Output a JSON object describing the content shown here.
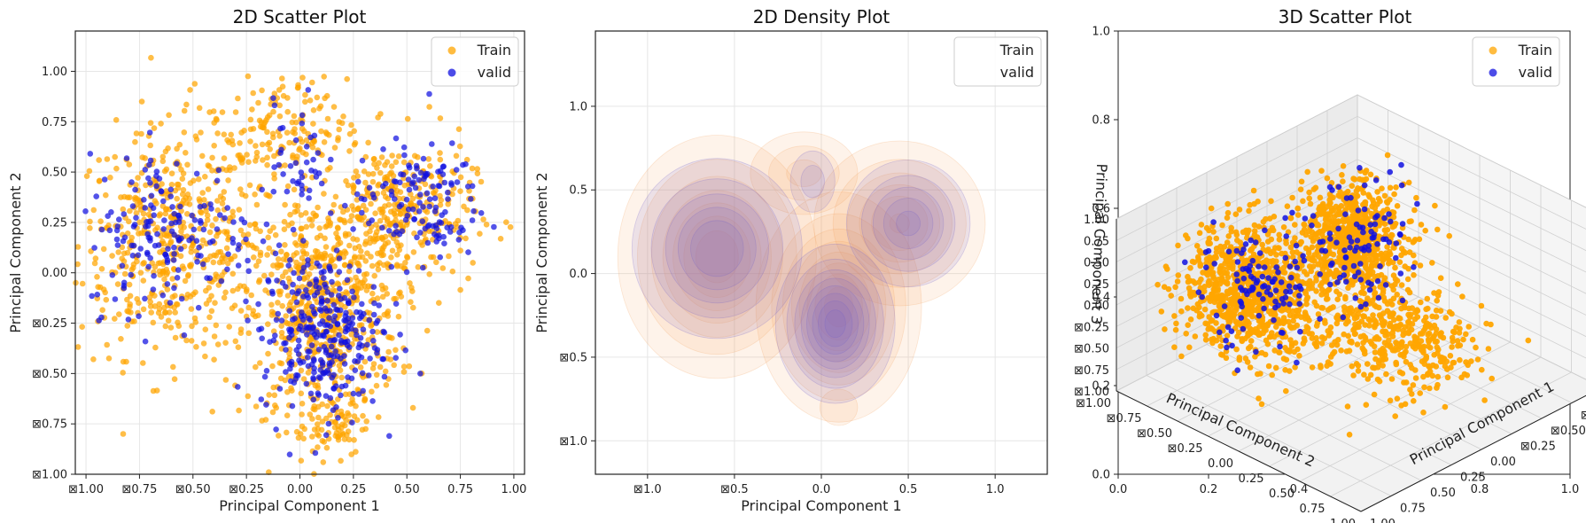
{
  "chart_data": [
    {
      "type": "scatter",
      "title": "2D Scatter Plot",
      "xlabel": "Principal Component 1",
      "ylabel": "Principal Component 2",
      "xlim": [
        -1.05,
        1.05
      ],
      "ylim": [
        -1.0,
        1.2
      ],
      "xticks": [
        "⊠1.00",
        "⊠0.75",
        "⊠0.50",
        "⊠0.25",
        "0.00",
        "0.25",
        "0.50",
        "0.75",
        "1.00"
      ],
      "xtick_values": [
        -1.0,
        -0.75,
        -0.5,
        -0.25,
        0,
        0.25,
        0.5,
        0.75,
        1.0
      ],
      "yticks": [
        "⊠1.00",
        "⊠0.75",
        "⊠0.50",
        "⊠0.25",
        "0.00",
        "0.25",
        "0.50",
        "0.75",
        "1.00"
      ],
      "ytick_values": [
        -1.0,
        -0.75,
        -0.5,
        -0.25,
        0,
        0.25,
        0.5,
        0.75,
        1.0
      ],
      "grid": true,
      "legend_position": "top-right",
      "series": [
        {
          "name": "Train",
          "color": "#FFA500",
          "clusters": [
            {
              "cx": -0.6,
              "cy": 0.15,
              "sx": 0.22,
              "sy": 0.28,
              "n": 520
            },
            {
              "cx": 0.1,
              "cy": -0.2,
              "sx": 0.18,
              "sy": 0.28,
              "n": 650
            },
            {
              "cx": 0.45,
              "cy": 0.3,
              "sx": 0.18,
              "sy": 0.18,
              "n": 340
            },
            {
              "cx": -0.1,
              "cy": 0.7,
              "sx": 0.16,
              "sy": 0.13,
              "n": 160
            },
            {
              "cx": 0.15,
              "cy": -0.75,
              "sx": 0.08,
              "sy": 0.08,
              "n": 60
            }
          ]
        },
        {
          "name": "valid",
          "color": "#1010E0",
          "clusters": [
            {
              "cx": -0.6,
              "cy": 0.2,
              "sx": 0.2,
              "sy": 0.2,
              "n": 170
            },
            {
              "cx": 0.1,
              "cy": -0.3,
              "sx": 0.14,
              "sy": 0.2,
              "n": 300
            },
            {
              "cx": 0.55,
              "cy": 0.35,
              "sx": 0.15,
              "sy": 0.15,
              "n": 130
            },
            {
              "cx": 0.0,
              "cy": 0.55,
              "sx": 0.06,
              "sy": 0.15,
              "n": 40
            }
          ]
        }
      ]
    },
    {
      "type": "heatmap",
      "title": "2D Density Plot",
      "xlabel": "Principal Component 1",
      "ylabel": "Principal Component 2",
      "xlim": [
        -1.3,
        1.3
      ],
      "ylim": [
        -1.2,
        1.45
      ],
      "xticks": [
        "⊠1.0",
        "⊠0.5",
        "0.0",
        "0.5",
        "1.0"
      ],
      "xtick_values": [
        -1.0,
        -0.5,
        0,
        0.5,
        1.0
      ],
      "yticks": [
        "⊠1.0",
        "⊠0.5",
        "0.0",
        "0.5",
        "1.0"
      ],
      "ytick_values": [
        -1.0,
        -0.5,
        0,
        0.5,
        1.0
      ],
      "grid": true,
      "legend_position": "top-right",
      "series": [
        {
          "name": "Train",
          "color": "#F4A460",
          "components": [
            {
              "cx": -0.6,
              "cy": 0.1,
              "sx": 0.22,
              "sy": 0.28,
              "w": 0.35
            },
            {
              "cx": 0.1,
              "cy": -0.2,
              "sx": 0.18,
              "sy": 0.26,
              "w": 0.4
            },
            {
              "cx": 0.45,
              "cy": 0.3,
              "sx": 0.2,
              "sy": 0.2,
              "w": 0.25
            },
            {
              "cx": -0.1,
              "cy": 0.6,
              "sx": 0.15,
              "sy": 0.12,
              "w": 0.1
            },
            {
              "cx": 0.1,
              "cy": -0.8,
              "sx": 0.07,
              "sy": 0.07,
              "w": 0.04
            }
          ]
        },
        {
          "name": "valid",
          "color": "#6A5ACD",
          "components": [
            {
              "cx": -0.6,
              "cy": 0.15,
              "sx": 0.2,
              "sy": 0.22,
              "w": 0.3
            },
            {
              "cx": 0.08,
              "cy": -0.3,
              "sx": 0.13,
              "sy": 0.18,
              "w": 0.5
            },
            {
              "cx": 0.5,
              "cy": 0.3,
              "sx": 0.15,
              "sy": 0.16,
              "w": 0.25
            },
            {
              "cx": -0.05,
              "cy": 0.55,
              "sx": 0.07,
              "sy": 0.1,
              "w": 0.08
            }
          ]
        }
      ]
    },
    {
      "type": "scatter",
      "title": "3D Scatter Plot",
      "xlabel": "Principal Component 1",
      "ylabel": "Principal Component 2",
      "zlabel": "Principal Component 3",
      "outer_xticks": [
        "0.0",
        "0.2",
        "0.4",
        "0.6",
        "0.8",
        "1.0"
      ],
      "outer_yticks": [
        "0.0",
        "0.2",
        "0.4",
        "0.6",
        "0.8",
        "1.0"
      ],
      "axis_ticks": [
        "⊠1.00",
        "⊠0.75",
        "⊠0.50",
        "⊠0.25",
        "0.00",
        "0.25",
        "0.50",
        "0.75",
        "1.00"
      ],
      "legend_position": "top-right",
      "series": [
        {
          "name": "Train",
          "color": "#FFA500"
        },
        {
          "name": "valid",
          "color": "#1010E0"
        }
      ]
    }
  ]
}
